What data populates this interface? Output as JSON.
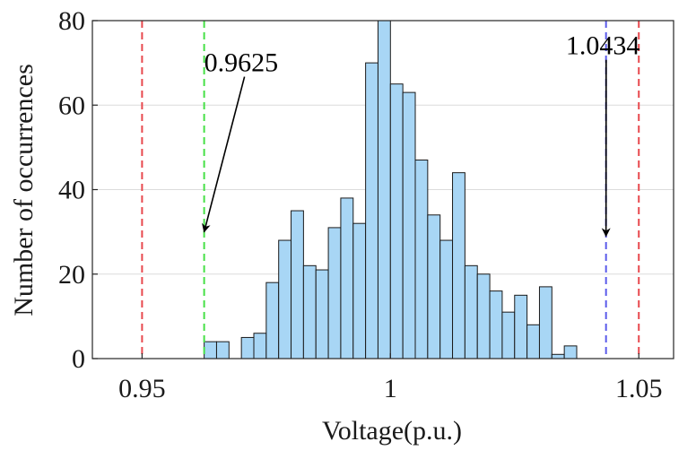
{
  "chart_data": {
    "type": "bar",
    "title": "",
    "xlabel": "Voltage(p.u.)",
    "ylabel": "Number of occurrences",
    "xlim": [
      0.94,
      1.057
    ],
    "ylim": [
      0,
      80
    ],
    "xticks": [
      {
        "value": 0.95,
        "label": "0.95"
      },
      {
        "value": 1.0,
        "label": "1"
      },
      {
        "value": 1.05,
        "label": "1.05"
      }
    ],
    "yticks": [
      {
        "value": 0,
        "label": "0"
      },
      {
        "value": 20,
        "label": "20"
      },
      {
        "value": 40,
        "label": "40"
      },
      {
        "value": 60,
        "label": "60"
      },
      {
        "value": 80,
        "label": "80"
      }
    ],
    "grid": "horizontal",
    "bin_width": 0.0025,
    "bins": [
      {
        "x": 0.9625,
        "count": 4
      },
      {
        "x": 0.965,
        "count": 4
      },
      {
        "x": 0.97,
        "count": 5
      },
      {
        "x": 0.9725,
        "count": 6
      },
      {
        "x": 0.975,
        "count": 18
      },
      {
        "x": 0.9775,
        "count": 28
      },
      {
        "x": 0.98,
        "count": 35
      },
      {
        "x": 0.9825,
        "count": 22
      },
      {
        "x": 0.985,
        "count": 21
      },
      {
        "x": 0.9875,
        "count": 31
      },
      {
        "x": 0.99,
        "count": 38
      },
      {
        "x": 0.9925,
        "count": 32
      },
      {
        "x": 0.995,
        "count": 70
      },
      {
        "x": 0.9975,
        "count": 80
      },
      {
        "x": 1.0,
        "count": 65
      },
      {
        "x": 1.0025,
        "count": 63
      },
      {
        "x": 1.005,
        "count": 47
      },
      {
        "x": 1.0075,
        "count": 34
      },
      {
        "x": 1.01,
        "count": 28
      },
      {
        "x": 1.0125,
        "count": 44
      },
      {
        "x": 1.015,
        "count": 22
      },
      {
        "x": 1.0175,
        "count": 20
      },
      {
        "x": 1.02,
        "count": 16
      },
      {
        "x": 1.0225,
        "count": 11
      },
      {
        "x": 1.025,
        "count": 15
      },
      {
        "x": 1.0275,
        "count": 8
      },
      {
        "x": 1.03,
        "count": 17
      },
      {
        "x": 1.0325,
        "count": 1
      },
      {
        "x": 1.035,
        "count": 3
      }
    ],
    "reference_lines": [
      {
        "x": 0.95,
        "color": "#e8494e"
      },
      {
        "x": 1.05,
        "color": "#e8494e"
      },
      {
        "x": 0.9625,
        "color": "#46e046"
      },
      {
        "x": 1.0434,
        "color": "#5b5bea"
      }
    ],
    "annotations": [
      {
        "text": "0.9625",
        "point_x": 0.9625,
        "point_y": 30,
        "text_x": 0.9625,
        "text_y": 68
      },
      {
        "text": "1.0434",
        "point_x": 1.0434,
        "point_y": 29,
        "text_x": 1.0353,
        "text_y": 72
      }
    ],
    "colors": {
      "bar_fill": "#a8d6f5",
      "bar_edge": "#1a1a1a",
      "grid": "#dcdcdc",
      "axis": "#262626",
      "text": "#1a1a1a"
    }
  }
}
